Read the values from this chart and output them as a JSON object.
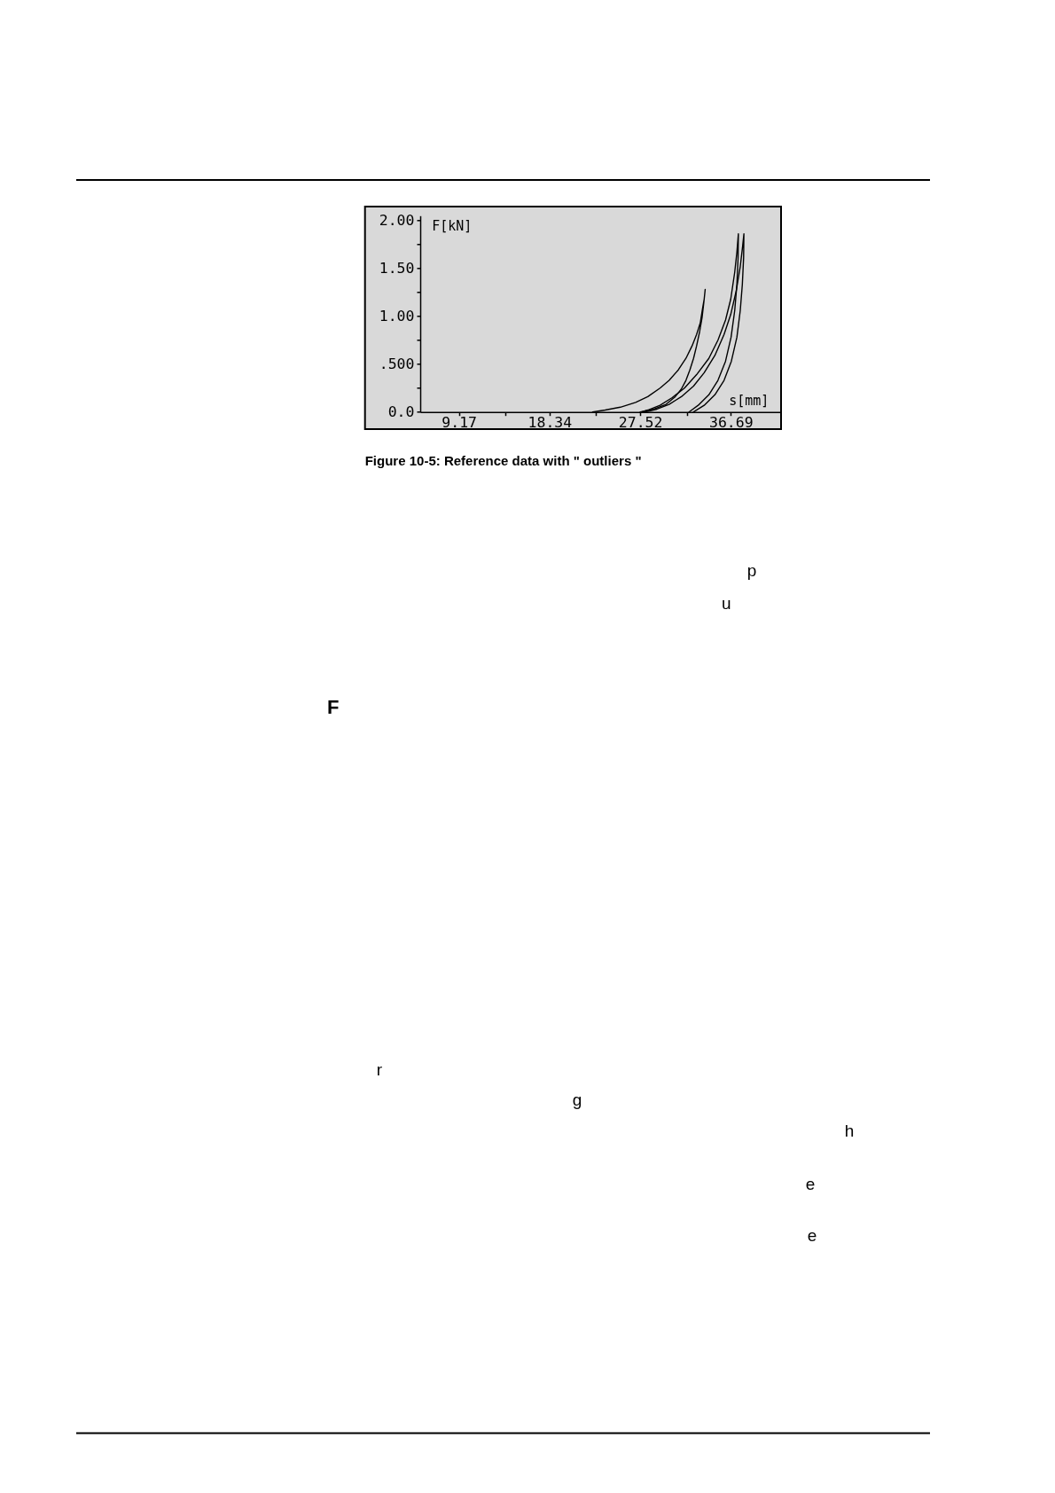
{
  "chart_data": {
    "type": "line",
    "xlabel": "s[mm]",
    "ylabel": "F[kN]",
    "xlim": [
      5.25,
      41.7
    ],
    "ylim": [
      0,
      2.05
    ],
    "xticks": [
      9.17,
      {
        "value": 13.9,
        "label": null
      },
      18.34,
      {
        "value": 23.05,
        "label": null
      },
      27.52,
      {
        "value": 32.25,
        "label": null
      },
      36.69
    ],
    "yticks": [
      {
        "value": 0,
        "label": "0.0"
      },
      {
        "value": 0.25,
        "label": null
      },
      {
        "value": 0.5,
        "label": ".500"
      },
      {
        "value": 0.75,
        "label": null
      },
      {
        "value": 1,
        "label": "1.00"
      },
      {
        "value": 1.25,
        "label": null
      },
      {
        "value": 1.5,
        "label": "1.50"
      },
      {
        "value": 1.75,
        "label": null
      },
      {
        "value": 2,
        "label": "2.00"
      }
    ],
    "series": [
      {
        "color": "#000000",
        "x": [
          22.7,
          23.97,
          25.51,
          27.06,
          28.29,
          29.53,
          30.45,
          31.38,
          32.15,
          32.77,
          33.23,
          33.6,
          33.85,
          34.0,
          34.1,
          33.97,
          33.79,
          33.54,
          33.23,
          32.92,
          32.55,
          32.15,
          31.69,
          31.07,
          30.14,
          28.91,
          27.52
        ],
        "values": [
          0,
          0.02,
          0.05,
          0.1,
          0.16,
          0.25,
          0.33,
          0.44,
          0.56,
          0.69,
          0.81,
          0.93,
          1.09,
          1.18,
          1.28,
          1.15,
          0.99,
          0.84,
          0.69,
          0.56,
          0.44,
          0.33,
          0.24,
          0.16,
          0.08,
          0.03,
          0
        ]
      },
      {
        "color": "#000000",
        "x": [
          27.67,
          28.29,
          29.53,
          30.76,
          32.0,
          33.23,
          34.47,
          35.39,
          36.16,
          36.69,
          37.09,
          37.31,
          37.46,
          37.43,
          37.31,
          37.09,
          36.72,
          36.16,
          35.39,
          34.47,
          33.39,
          32.46
        ],
        "values": [
          0,
          0.02,
          0.07,
          0.15,
          0.25,
          0.39,
          0.56,
          0.75,
          0.96,
          1.18,
          1.46,
          1.67,
          1.86,
          1.61,
          1.33,
          1.06,
          0.78,
          0.53,
          0.33,
          0.18,
          0.07,
          0
        ]
      },
      {
        "color": "#000000",
        "x": [
          27.98,
          29.22,
          30.45,
          31.69,
          32.92,
          34.0,
          35.08,
          36.01,
          36.69,
          37.25,
          37.65,
          37.89,
          38.02,
          37.99,
          37.86,
          37.65,
          37.31,
          36.75,
          36.01,
          35.08,
          34.0,
          32.92
        ],
        "values": [
          0,
          0.03,
          0.08,
          0.16,
          0.27,
          0.41,
          0.59,
          0.81,
          1.02,
          1.27,
          1.52,
          1.73,
          1.86,
          1.61,
          1.33,
          1.06,
          0.78,
          0.53,
          0.33,
          0.18,
          0.07,
          0
        ]
      }
    ],
    "annotations": [
      "Figure 10-5: Reference data with \" outliers \"",
      "p",
      "u",
      "F",
      "r",
      "g",
      "h",
      "e",
      "e"
    ]
  }
}
